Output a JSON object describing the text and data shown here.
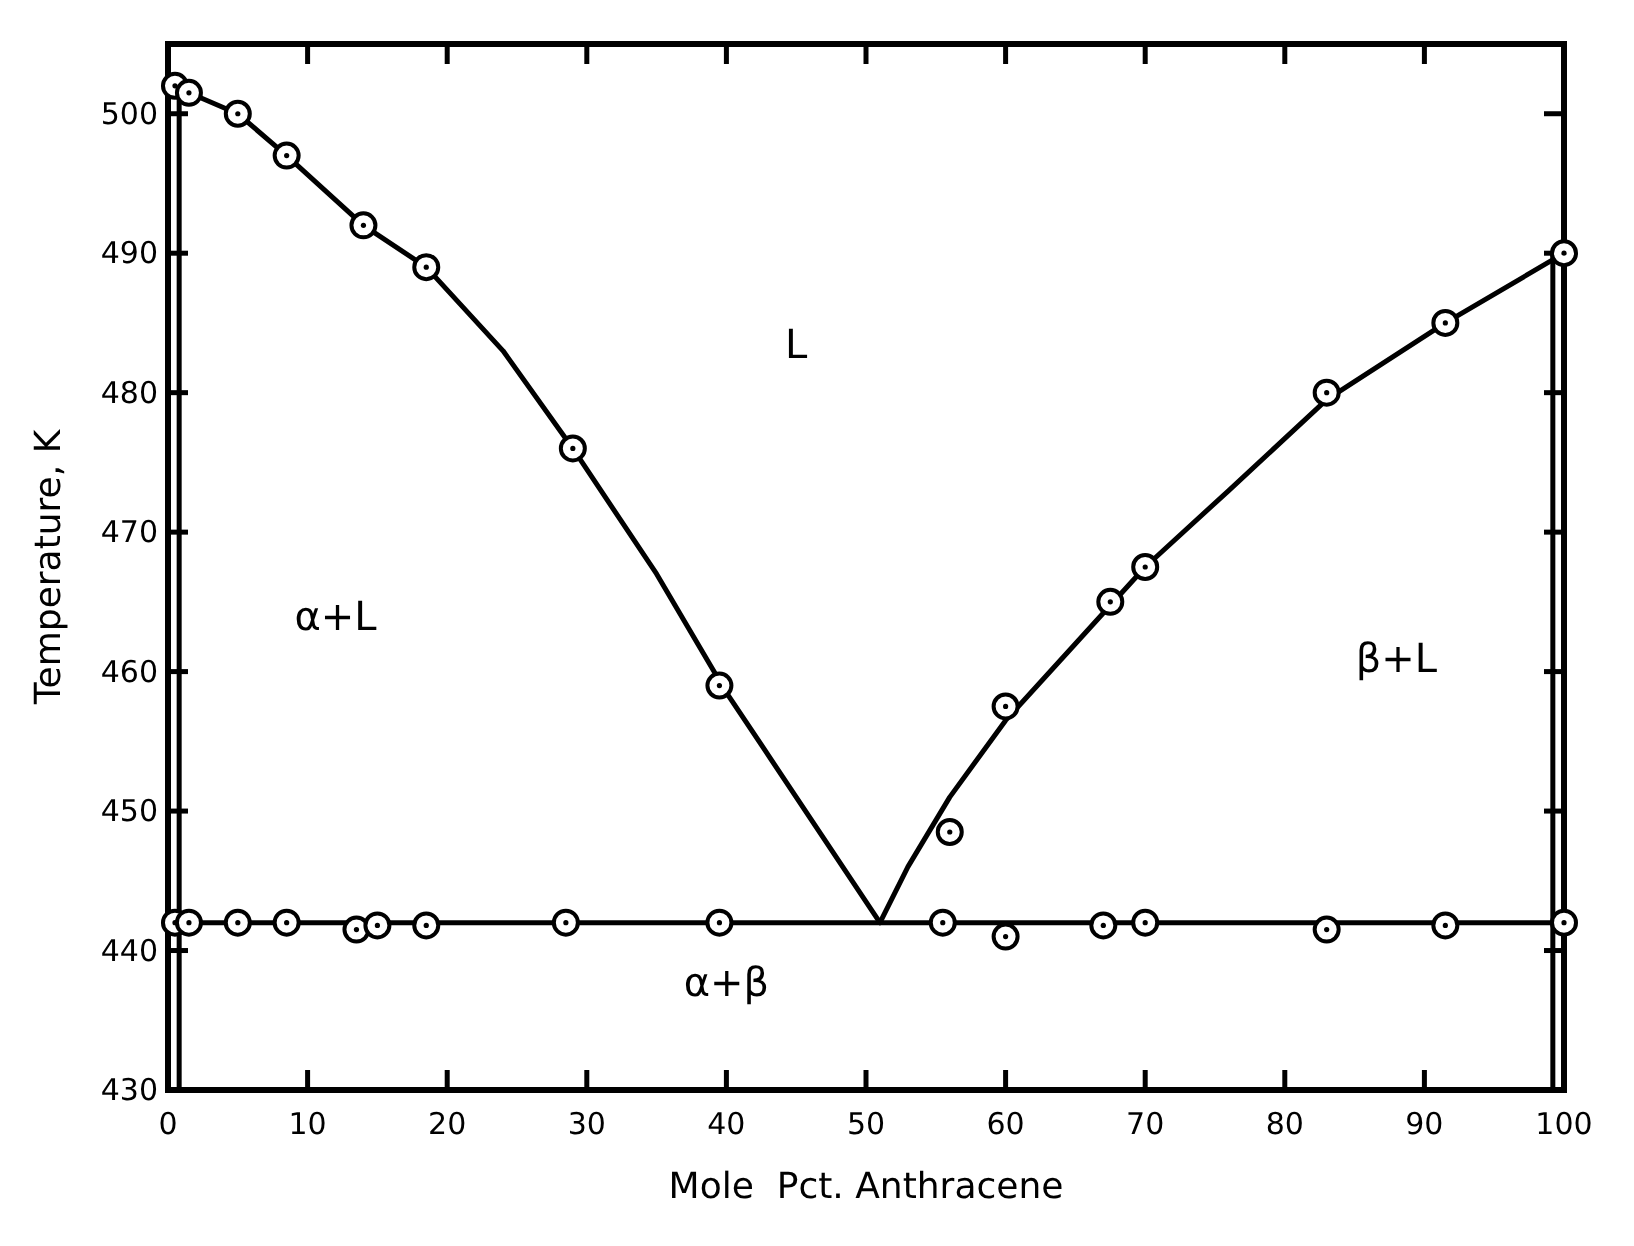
{
  "chart_data": {
    "type": "scatter",
    "xlabel": "Mole  Pct. Anthracene",
    "ylabel": "Temperature, K",
    "xlim": [
      0,
      100
    ],
    "ylim": [
      430,
      505
    ],
    "xticks": [
      0,
      10,
      20,
      30,
      40,
      50,
      60,
      70,
      80,
      90,
      100
    ],
    "yticks": [
      430,
      440,
      450,
      460,
      470,
      480,
      490,
      500
    ],
    "grid": false,
    "marker": "circle",
    "series": [
      {
        "type": "line",
        "color": "#000000",
        "marker": "none",
        "x": [
          0,
          1.5,
          5,
          8.5,
          14,
          18.5,
          24,
          29,
          35,
          40,
          45,
          51
        ],
        "values": [
          502,
          501.5,
          500,
          497,
          492,
          489,
          483,
          476,
          467,
          458.5,
          451,
          442
        ]
      },
      {
        "type": "line",
        "color": "#000000",
        "marker": "none",
        "x": [
          51,
          53,
          56,
          60,
          65,
          70,
          76,
          83,
          91.5,
          100
        ],
        "values": [
          442,
          446,
          451,
          456.5,
          462,
          467.5,
          473,
          479.5,
          485,
          490
        ]
      },
      {
        "type": "line",
        "color": "#000000",
        "marker": "none",
        "x": [
          0,
          100
        ],
        "values": [
          442,
          442
        ]
      },
      {
        "type": "line",
        "color": "#000000",
        "marker": "none",
        "x": [
          0.8,
          0.8
        ],
        "values": [
          430,
          502
        ]
      },
      {
        "type": "line",
        "color": "#000000",
        "marker": "none",
        "x": [
          99.2,
          99.2
        ],
        "values": [
          430,
          490
        ]
      },
      {
        "color": "#000000",
        "x": [
          0.5,
          1.5,
          5,
          8.5,
          14,
          18.5,
          29,
          39.5,
          56,
          60,
          67.5,
          70,
          83,
          91.5,
          100
        ],
        "values": [
          502,
          501.5,
          500,
          497,
          492,
          489,
          476,
          459,
          448.5,
          457.5,
          465,
          467.5,
          480,
          485,
          490
        ]
      },
      {
        "color": "#000000",
        "x": [
          0.5,
          1.5,
          5,
          8.5,
          13.5,
          15,
          18.5,
          28.5,
          39.5,
          55.5,
          60,
          67,
          70,
          83,
          91.5,
          100
        ],
        "values": [
          442,
          442,
          442,
          442,
          441.5,
          441.8,
          441.8,
          442,
          442,
          442,
          441,
          441.8,
          442,
          441.5,
          441.8,
          442
        ]
      }
    ],
    "annotations": [
      "L",
      "α+L",
      "β+L",
      "α+β"
    ]
  }
}
